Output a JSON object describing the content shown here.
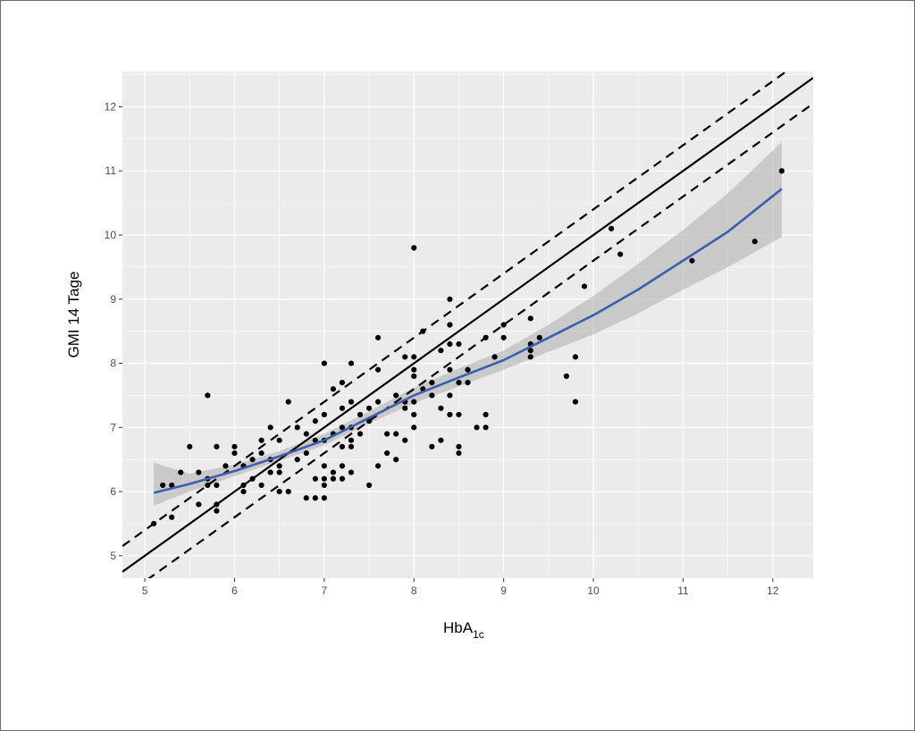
{
  "chart_data": {
    "type": "scatter",
    "xlabel": "HbA",
    "xlabel_subscript": "1c",
    "ylabel": "GMI 14 Tage",
    "xlim": [
      4.75,
      12.45
    ],
    "ylim": [
      4.65,
      12.55
    ],
    "x_ticks": [
      5,
      6,
      7,
      8,
      9,
      10,
      11,
      12
    ],
    "y_ticks": [
      5,
      6,
      7,
      8,
      9,
      10,
      11,
      12
    ],
    "grid": true,
    "legend": "none",
    "colors": {
      "panel": "#ebebeb",
      "grid": "#ffffff",
      "points": "#000000",
      "smooth_line": "#3a5fad",
      "ribbon": "#b3b3b3",
      "reference": "#000000"
    },
    "reference_lines": [
      {
        "style": "solid",
        "intercept": 0,
        "slope": 1
      },
      {
        "style": "dashed",
        "intercept": 0.4,
        "slope": 1
      },
      {
        "style": "dashed",
        "intercept": -0.4,
        "slope": 1
      }
    ],
    "smooth": {
      "x": [
        5.1,
        5.5,
        6.0,
        6.5,
        7.0,
        7.5,
        8.0,
        8.5,
        9.0,
        9.5,
        10.0,
        10.5,
        11.0,
        11.5,
        12.1
      ],
      "y": [
        5.98,
        6.12,
        6.32,
        6.55,
        6.8,
        7.15,
        7.5,
        7.78,
        8.05,
        8.4,
        8.75,
        9.15,
        9.6,
        10.05,
        10.72
      ],
      "lower": [
        5.78,
        6.0,
        6.24,
        6.48,
        6.72,
        7.06,
        7.38,
        7.64,
        7.9,
        8.18,
        8.45,
        8.78,
        9.15,
        9.5,
        9.97
      ],
      "upper": [
        6.45,
        6.28,
        6.42,
        6.63,
        6.9,
        7.25,
        7.62,
        7.92,
        8.2,
        8.6,
        9.05,
        9.55,
        10.08,
        10.65,
        11.45
      ]
    },
    "points": [
      [
        5.1,
        5.5
      ],
      [
        5.2,
        6.1
      ],
      [
        5.3,
        6.1
      ],
      [
        5.3,
        5.6
      ],
      [
        5.4,
        6.3
      ],
      [
        5.5,
        6.7
      ],
      [
        5.6,
        6.3
      ],
      [
        5.6,
        5.8
      ],
      [
        5.7,
        6.2
      ],
      [
        5.7,
        6.1
      ],
      [
        5.7,
        7.5
      ],
      [
        5.8,
        5.8
      ],
      [
        5.8,
        5.7
      ],
      [
        5.8,
        6.1
      ],
      [
        5.8,
        6.7
      ],
      [
        5.9,
        6.4
      ],
      [
        6.0,
        6.7
      ],
      [
        6.0,
        6.6
      ],
      [
        6.1,
        6.4
      ],
      [
        6.1,
        6.1
      ],
      [
        6.1,
        6.0
      ],
      [
        6.2,
        6.2
      ],
      [
        6.2,
        6.5
      ],
      [
        6.3,
        6.8
      ],
      [
        6.3,
        6.6
      ],
      [
        6.3,
        6.1
      ],
      [
        6.4,
        7.0
      ],
      [
        6.4,
        6.5
      ],
      [
        6.4,
        6.3
      ],
      [
        6.5,
        6.8
      ],
      [
        6.5,
        6.4
      ],
      [
        6.5,
        6.3
      ],
      [
        6.5,
        6.0
      ],
      [
        6.6,
        7.4
      ],
      [
        6.6,
        6.0
      ],
      [
        6.7,
        7.0
      ],
      [
        6.7,
        6.5
      ],
      [
        6.8,
        6.9
      ],
      [
        6.8,
        6.6
      ],
      [
        6.8,
        5.9
      ],
      [
        6.9,
        7.1
      ],
      [
        6.9,
        6.8
      ],
      [
        6.9,
        6.2
      ],
      [
        6.9,
        5.9
      ],
      [
        7.0,
        8.0
      ],
      [
        7.0,
        7.2
      ],
      [
        7.0,
        6.8
      ],
      [
        7.0,
        6.4
      ],
      [
        7.0,
        6.2
      ],
      [
        7.0,
        6.1
      ],
      [
        7.0,
        5.9
      ],
      [
        7.1,
        7.6
      ],
      [
        7.1,
        6.9
      ],
      [
        7.1,
        6.3
      ],
      [
        7.1,
        6.2
      ],
      [
        7.2,
        7.7
      ],
      [
        7.2,
        7.3
      ],
      [
        7.2,
        7.0
      ],
      [
        7.2,
        6.7
      ],
      [
        7.2,
        6.4
      ],
      [
        7.2,
        6.2
      ],
      [
        7.3,
        8.0
      ],
      [
        7.3,
        7.4
      ],
      [
        7.3,
        7.0
      ],
      [
        7.3,
        6.8
      ],
      [
        7.3,
        6.7
      ],
      [
        7.3,
        6.3
      ],
      [
        7.4,
        7.2
      ],
      [
        7.4,
        6.9
      ],
      [
        7.5,
        7.3
      ],
      [
        7.5,
        7.1
      ],
      [
        7.5,
        6.1
      ],
      [
        7.6,
        8.4
      ],
      [
        7.6,
        7.9
      ],
      [
        7.6,
        7.4
      ],
      [
        7.6,
        6.4
      ],
      [
        7.7,
        6.9
      ],
      [
        7.7,
        6.6
      ],
      [
        7.8,
        7.5
      ],
      [
        7.8,
        6.9
      ],
      [
        7.8,
        6.5
      ],
      [
        7.9,
        8.1
      ],
      [
        7.9,
        7.4
      ],
      [
        7.9,
        7.3
      ],
      [
        7.9,
        6.8
      ],
      [
        8.0,
        9.8
      ],
      [
        8.0,
        8.1
      ],
      [
        8.0,
        7.9
      ],
      [
        8.0,
        7.8
      ],
      [
        8.0,
        7.4
      ],
      [
        8.0,
        7.2
      ],
      [
        8.0,
        7.0
      ],
      [
        8.1,
        8.5
      ],
      [
        8.1,
        7.6
      ],
      [
        8.2,
        7.7
      ],
      [
        8.2,
        7.5
      ],
      [
        8.2,
        6.7
      ],
      [
        8.3,
        8.2
      ],
      [
        8.3,
        7.3
      ],
      [
        8.3,
        6.8
      ],
      [
        8.4,
        9.0
      ],
      [
        8.4,
        8.6
      ],
      [
        8.4,
        8.3
      ],
      [
        8.4,
        7.9
      ],
      [
        8.4,
        7.5
      ],
      [
        8.4,
        7.2
      ],
      [
        8.5,
        8.3
      ],
      [
        8.5,
        7.7
      ],
      [
        8.5,
        7.2
      ],
      [
        8.5,
        6.7
      ],
      [
        8.5,
        6.6
      ],
      [
        8.6,
        7.9
      ],
      [
        8.6,
        7.7
      ],
      [
        8.7,
        7.0
      ],
      [
        8.8,
        8.4
      ],
      [
        8.8,
        7.2
      ],
      [
        8.8,
        7.0
      ],
      [
        8.9,
        8.1
      ],
      [
        9.0,
        8.6
      ],
      [
        9.0,
        8.4
      ],
      [
        9.3,
        8.7
      ],
      [
        9.3,
        8.3
      ],
      [
        9.3,
        8.2
      ],
      [
        9.3,
        8.1
      ],
      [
        9.4,
        8.4
      ],
      [
        9.7,
        7.8
      ],
      [
        9.8,
        8.1
      ],
      [
        9.8,
        7.4
      ],
      [
        9.9,
        9.2
      ],
      [
        10.2,
        10.1
      ],
      [
        10.3,
        9.7
      ],
      [
        11.1,
        9.6
      ],
      [
        11.8,
        9.9
      ],
      [
        12.1,
        11.0
      ]
    ]
  }
}
